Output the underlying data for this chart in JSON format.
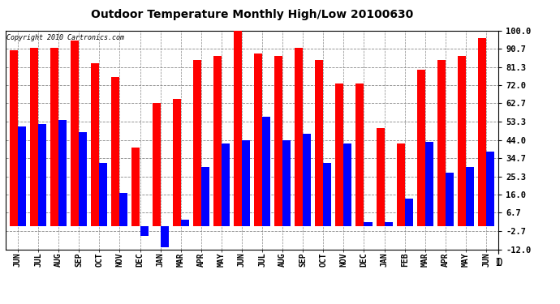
{
  "title": "Outdoor Temperature Monthly High/Low 20100630",
  "copyright": "Copyright 2010 Cartronics.com",
  "months": [
    "JUN",
    "JUL",
    "AUG",
    "SEP",
    "OCT",
    "NOV",
    "DEC",
    "JAN",
    "MAR",
    "APR",
    "MAY",
    "JUN",
    "JUL",
    "AUG",
    "SEP",
    "OCT",
    "NOV",
    "DEC",
    "JAN",
    "FEB",
    "MAR",
    "APR",
    "MAY",
    "JUN"
  ],
  "highs": [
    90,
    91,
    91,
    95,
    83,
    76,
    40,
    63,
    65,
    85,
    87,
    102,
    88,
    87,
    91,
    85,
    73,
    73,
    50,
    42,
    80,
    85,
    87,
    96
  ],
  "lows": [
    51,
    52,
    54,
    48,
    32,
    17,
    -5,
    -11,
    3,
    30,
    42,
    44,
    56,
    44,
    47,
    32,
    42,
    2,
    2,
    14,
    43,
    27,
    30,
    38
  ],
  "ylim": [
    -12,
    100
  ],
  "yticks": [
    100.0,
    90.7,
    81.3,
    72.0,
    62.7,
    53.3,
    44.0,
    34.7,
    25.3,
    16.0,
    6.7,
    -2.7,
    -12.0
  ],
  "high_color": "#ff0000",
  "low_color": "#0000ff",
  "background_color": "#ffffff",
  "grid_color": "#888888",
  "bar_width": 0.4,
  "figsize": [
    6.9,
    3.75
  ],
  "dpi": 100
}
